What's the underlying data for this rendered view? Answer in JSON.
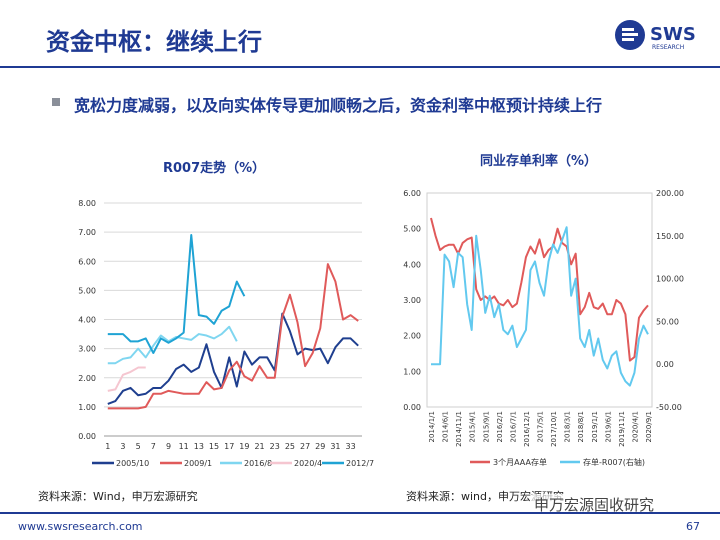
{
  "header": {
    "title": "资金中枢：继续上行",
    "logo_text": "SWS",
    "logo_sub": "RESEARCH"
  },
  "subtitle": "宽松力度减弱，以及向实体传导更加顺畅之后，资金利率中枢预计持续上行",
  "footer": {
    "url": "www.swsresearch.com",
    "page": "67",
    "watermark": "申万宏源固收研究"
  },
  "colors": {
    "brand": "#1f3a93",
    "s2005": "#1f3f8f",
    "s2009": "#e05a5a",
    "s2016": "#7fd6f0",
    "s2020": "#f5c6d0",
    "s2012": "#1fa3d4",
    "aaa": "#e05a5a",
    "spread": "#62c9ef"
  },
  "chart_data": [
    {
      "type": "line",
      "title": "R007走势（%）",
      "source": "资料来源：Wind，申万宏源研究",
      "ylim": [
        0,
        8
      ],
      "yticks": [
        "0.00",
        "1.00",
        "2.00",
        "3.00",
        "4.00",
        "5.00",
        "6.00",
        "7.00",
        "8.00"
      ],
      "xticks": [
        "1",
        "3",
        "5",
        "7",
        "9",
        "11",
        "13",
        "15",
        "17",
        "19",
        "21",
        "23",
        "25",
        "27",
        "29",
        "31",
        "33"
      ],
      "series": [
        {
          "name": "2005/10",
          "key": "s2005",
          "x": [
            1,
            2,
            3,
            4,
            5,
            6,
            7,
            8,
            9,
            10,
            11,
            12,
            13,
            14,
            15,
            16,
            17,
            18,
            19,
            20,
            21,
            22,
            23,
            24,
            25,
            26,
            27,
            28,
            29,
            30,
            31,
            32,
            33,
            34
          ],
          "values": [
            1.1,
            1.2,
            1.55,
            1.65,
            1.4,
            1.45,
            1.65,
            1.65,
            1.9,
            2.3,
            2.45,
            2.2,
            2.35,
            3.15,
            2.2,
            1.65,
            2.7,
            1.7,
            2.9,
            2.45,
            2.7,
            2.7,
            2.25,
            4.2,
            3.6,
            2.8,
            3.0,
            2.95,
            3.0,
            2.5,
            3.05,
            3.35,
            3.35,
            3.1
          ]
        },
        {
          "name": "2009/1",
          "key": "s2009",
          "x": [
            1,
            2,
            3,
            4,
            5,
            6,
            7,
            8,
            9,
            10,
            11,
            12,
            13,
            14,
            15,
            16,
            17,
            18,
            19,
            20,
            21,
            22,
            23,
            24,
            25,
            26,
            27,
            28,
            29,
            30,
            31,
            32,
            33,
            34
          ],
          "values": [
            0.95,
            0.95,
            0.95,
            0.95,
            0.95,
            1.0,
            1.45,
            1.45,
            1.55,
            1.5,
            1.45,
            1.45,
            1.45,
            1.85,
            1.6,
            1.65,
            2.25,
            2.55,
            2.05,
            1.9,
            2.4,
            2.0,
            2.0,
            4.1,
            4.85,
            3.9,
            2.4,
            2.85,
            3.7,
            5.9,
            5.3,
            4.0,
            4.15,
            3.95
          ]
        },
        {
          "name": "2016/8",
          "key": "s2016",
          "x": [
            1,
            2,
            3,
            4,
            5,
            6,
            7,
            8,
            9,
            10,
            11,
            12,
            13,
            14,
            15,
            16,
            17,
            18
          ],
          "values": [
            2.5,
            2.5,
            2.65,
            2.7,
            3.0,
            2.7,
            3.1,
            3.45,
            3.25,
            3.4,
            3.35,
            3.3,
            3.5,
            3.45,
            3.35,
            3.5,
            3.75,
            3.25
          ]
        },
        {
          "name": "2020/4",
          "key": "s2020",
          "x": [
            1,
            2,
            3,
            4,
            5,
            6
          ],
          "values": [
            1.55,
            1.6,
            2.1,
            2.2,
            2.35,
            2.35
          ]
        },
        {
          "name": "2012/7",
          "key": "s2012",
          "x": [
            1,
            2,
            3,
            4,
            5,
            6,
            7,
            8,
            9,
            10,
            11,
            12,
            13,
            14,
            15,
            16,
            17,
            18,
            19
          ],
          "values": [
            3.5,
            3.5,
            3.5,
            3.25,
            3.25,
            3.35,
            2.85,
            3.35,
            3.2,
            3.35,
            3.55,
            6.9,
            4.15,
            4.1,
            3.85,
            4.3,
            4.45,
            5.3,
            4.8
          ]
        }
      ]
    },
    {
      "type": "line",
      "title": "同业存单利率（%）",
      "source": "资料来源：wind，申万宏源研究",
      "ylim": [
        0,
        6
      ],
      "y2lim": [
        -50,
        200
      ],
      "yticks": [
        "0.00",
        "1.00",
        "2.00",
        "3.00",
        "4.00",
        "5.00",
        "6.00"
      ],
      "y2ticks": [
        "-50.00",
        "0.00",
        "50.00",
        "100.00",
        "150.00",
        "200.00"
      ],
      "xticks": [
        "2014/1/1",
        "2014/6/1",
        "2014/11/1",
        "2015/4/1",
        "2015/9/1",
        "2016/2/1",
        "2016/7/1",
        "2016/12/1",
        "2017/5/1",
        "2017/10/1",
        "2018/3/1",
        "2018/8/1",
        "2019/1/1",
        "2019/6/1",
        "2019/11/1",
        "2020/4/1",
        "2020/9/1"
      ],
      "series": [
        {
          "name": "3个月AAA存单",
          "key": "aaa",
          "axis": "left",
          "values": [
            5.3,
            4.8,
            4.4,
            4.5,
            4.55,
            4.55,
            4.3,
            4.6,
            4.7,
            4.75,
            3.3,
            3.0,
            3.1,
            3.0,
            3.1,
            2.9,
            2.85,
            3.0,
            2.8,
            2.9,
            3.5,
            4.2,
            4.5,
            4.3,
            4.7,
            4.2,
            4.4,
            4.5,
            5.0,
            4.6,
            4.5,
            4.0,
            4.3,
            2.6,
            2.8,
            3.2,
            2.8,
            2.75,
            2.9,
            2.6,
            2.6,
            3.0,
            2.9,
            2.6,
            1.3,
            1.4,
            2.5,
            2.7,
            2.85
          ]
        },
        {
          "name": "存单-R007(右轴)",
          "key": "spread",
          "axis": "right",
          "values": [
            0,
            0,
            0,
            128,
            120,
            90,
            130,
            125,
            70,
            40,
            150,
            110,
            60,
            80,
            55,
            70,
            40,
            35,
            45,
            20,
            30,
            40,
            110,
            120,
            95,
            80,
            120,
            140,
            130,
            145,
            160,
            80,
            100,
            30,
            20,
            40,
            10,
            30,
            5,
            -5,
            10,
            15,
            -10,
            -20,
            -25,
            -10,
            30,
            45,
            35
          ]
        }
      ]
    }
  ]
}
